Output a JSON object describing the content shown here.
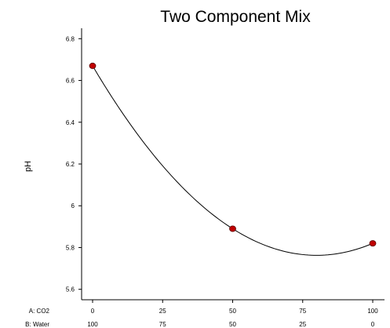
{
  "chart_data": {
    "type": "scatter",
    "title": "Two Component Mix",
    "ylabel": "pH",
    "xlabel": "",
    "xlim": [
      0,
      100
    ],
    "ylim": [
      5.55,
      6.85
    ],
    "y_ticks": [
      5.6,
      5.8,
      6,
      6.2,
      6.4,
      6.6,
      6.8
    ],
    "x_axes": [
      {
        "label": "A: CO2",
        "ticks": [
          0,
          25,
          50,
          75,
          100
        ],
        "tick_labels": [
          "0",
          "25",
          "50",
          "75",
          "100"
        ]
      },
      {
        "label": "B: Water",
        "ticks": [
          0,
          25,
          50,
          75,
          100
        ],
        "tick_labels": [
          "100",
          "75",
          "50",
          "25",
          "0"
        ]
      }
    ],
    "points": [
      {
        "x": 0,
        "y": 6.67
      },
      {
        "x": 50,
        "y": 5.89
      },
      {
        "x": 100,
        "y": 5.82
      }
    ],
    "fit_curve": {
      "type": "quadratic",
      "passes_through": [
        [
          0,
          6.67
        ],
        [
          50,
          5.89
        ],
        [
          100,
          5.82
        ]
      ]
    },
    "point_color": "#c00000",
    "grid": false,
    "legend": "none"
  }
}
